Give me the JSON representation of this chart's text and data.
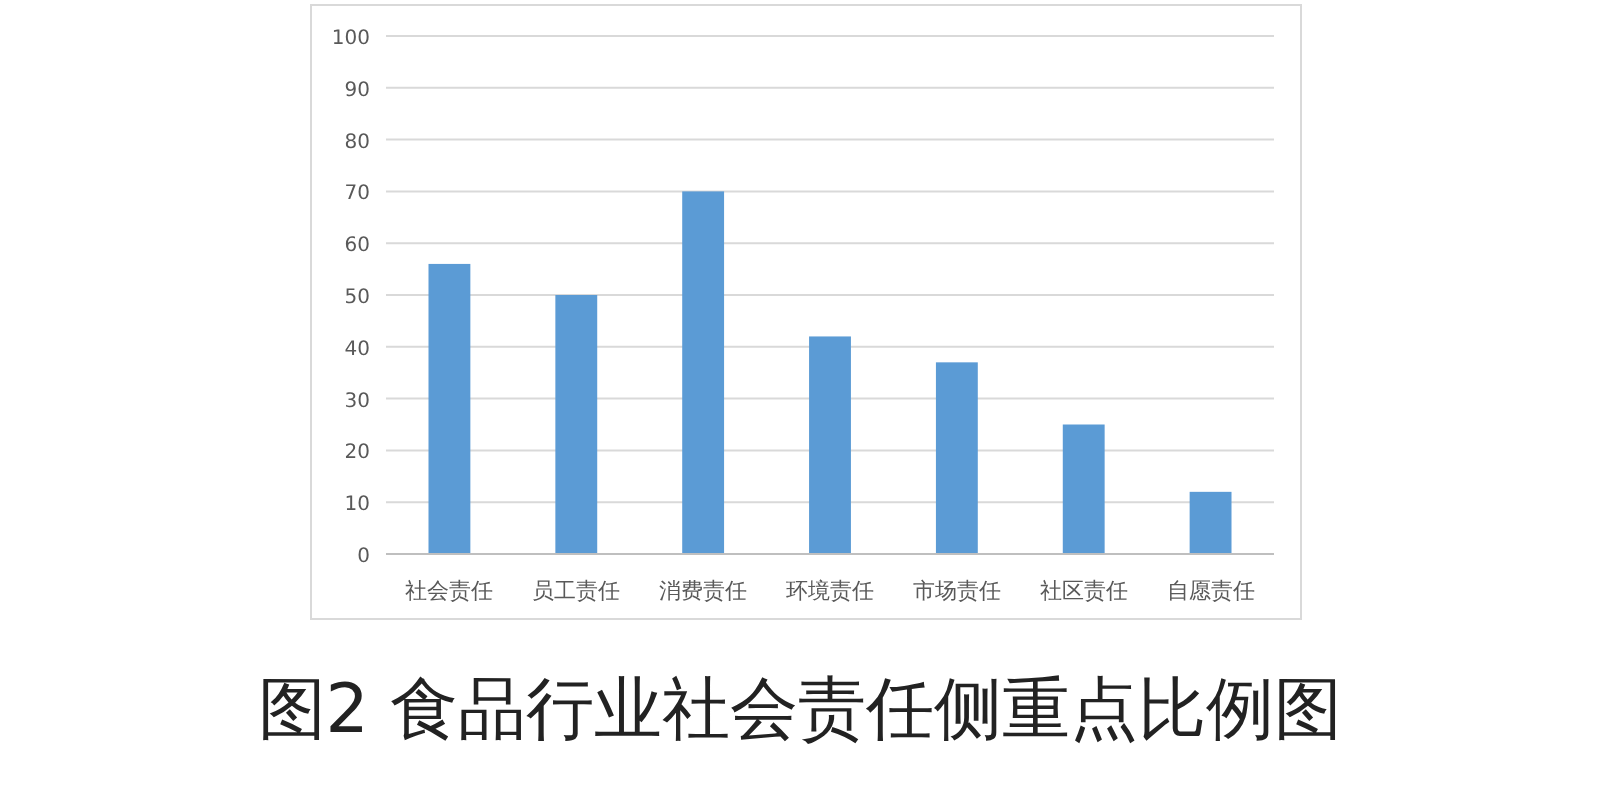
{
  "chart_data": {
    "type": "bar",
    "title": "图2 食品行业社会责任侧重点比例图",
    "categories": [
      "社会责任",
      "员工责任",
      "消费责任",
      "环境责任",
      "市场责任",
      "社区责任",
      "自愿责任"
    ],
    "values": [
      56,
      50,
      70,
      42,
      37,
      25,
      12
    ],
    "color": "#5b9bd5",
    "ylim": [
      0,
      100
    ],
    "yticks": [
      0,
      10,
      20,
      30,
      40,
      50,
      60,
      70,
      80,
      90,
      100
    ],
    "grid": "y"
  }
}
